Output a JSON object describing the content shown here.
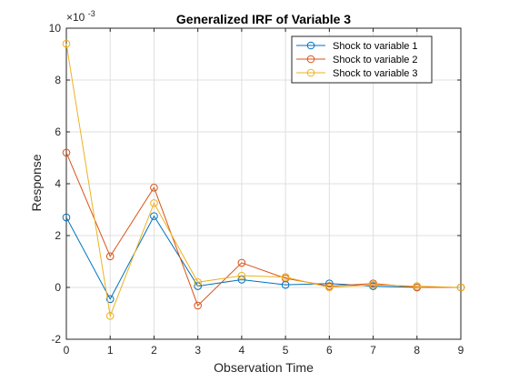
{
  "chart_data": {
    "type": "line",
    "title": "Generalized IRF of Variable 3",
    "xlabel": "Observation Time",
    "ylabel": "Response",
    "y_exponent_label": "×10",
    "y_exponent_power": "-3",
    "xlim": [
      0,
      9
    ],
    "ylim": [
      -2,
      10
    ],
    "x_ticks": [
      0,
      1,
      2,
      3,
      4,
      5,
      6,
      7,
      8,
      9
    ],
    "y_ticks": [
      -2,
      0,
      2,
      4,
      6,
      8,
      10
    ],
    "x_tick_labels": [
      "0",
      "1",
      "2",
      "3",
      "4",
      "5",
      "6",
      "7",
      "8",
      "9"
    ],
    "y_tick_labels": [
      "-2",
      "0",
      "2",
      "4",
      "6",
      "8",
      "10"
    ],
    "grid": true,
    "legend_position": "top-right",
    "marker": "circle",
    "x": [
      0,
      1,
      2,
      3,
      4,
      5,
      6,
      7,
      8,
      9
    ],
    "series": [
      {
        "name": "Shock to variable 1",
        "color": "#0072BD",
        "values": [
          2.7,
          -0.45,
          2.75,
          0.05,
          0.3,
          0.1,
          0.15,
          0.05,
          0.0,
          0.0
        ]
      },
      {
        "name": "Shock to variable 2",
        "color": "#D95319",
        "values": [
          5.2,
          1.2,
          3.85,
          -0.7,
          0.95,
          0.35,
          0.05,
          0.15,
          0.0,
          0.0
        ]
      },
      {
        "name": "Shock to variable 3",
        "color": "#EDB120",
        "values": [
          9.4,
          -1.1,
          3.25,
          0.2,
          0.45,
          0.4,
          0.0,
          0.1,
          0.05,
          0.0
        ]
      }
    ]
  }
}
